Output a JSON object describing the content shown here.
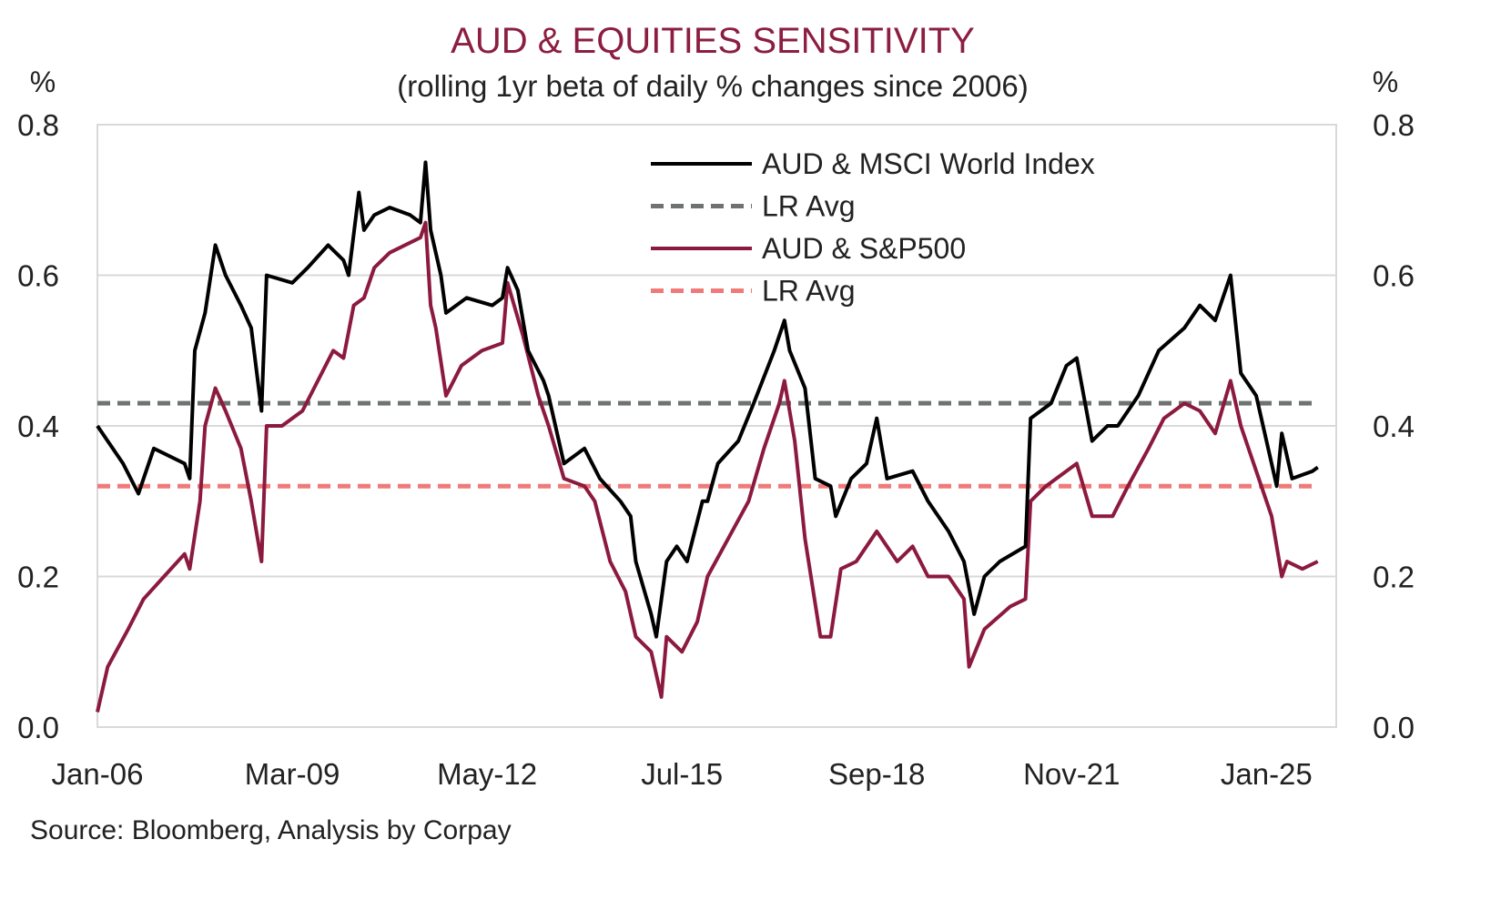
{
  "chart_data": {
    "type": "line",
    "title": "AUD & EQUITIES SENSITIVITY",
    "subtitle": "(rolling 1yr beta of daily % changes since 2006)",
    "ylabel_left": "%",
    "ylabel_right": "%",
    "ylim": [
      0,
      0.8
    ],
    "yticks": [
      "0.0",
      "0.2",
      "0.4",
      "0.6",
      "0.8"
    ],
    "xticks": [
      "Jan-06",
      "Mar-09",
      "May-12",
      "Jul-15",
      "Sep-18",
      "Nov-21",
      "Jan-25"
    ],
    "grid": true,
    "legend_position": "top-right",
    "source": "Source: Bloomberg, Analysis by Corpay",
    "colors": {
      "title": "#8b1e41",
      "msci": "#000000",
      "msci_avg": "#6e7270",
      "sp500": "#8c1a3e",
      "sp500_avg": "#f07a7a",
      "grid": "#d9d9d9"
    },
    "series": [
      {
        "name": "AUD & MSCI World Index",
        "style": "solid",
        "points": [
          [
            "2006-01",
            0.4
          ],
          [
            "2006-03",
            0.38
          ],
          [
            "2006-06",
            0.35
          ],
          [
            "2006-09",
            0.31
          ],
          [
            "2006-12",
            0.37
          ],
          [
            "2007-06",
            0.35
          ],
          [
            "2007-07",
            0.33
          ],
          [
            "2007-08",
            0.5
          ],
          [
            "2007-10",
            0.55
          ],
          [
            "2007-12",
            0.64
          ],
          [
            "2008-02",
            0.6
          ],
          [
            "2008-05",
            0.56
          ],
          [
            "2008-07",
            0.53
          ],
          [
            "2008-09",
            0.42
          ],
          [
            "2008-10",
            0.6
          ],
          [
            "2009-03",
            0.59
          ],
          [
            "2009-06",
            0.61
          ],
          [
            "2009-10",
            0.64
          ],
          [
            "2010-01",
            0.62
          ],
          [
            "2010-02",
            0.6
          ],
          [
            "2010-04",
            0.71
          ],
          [
            "2010-05",
            0.66
          ],
          [
            "2010-07",
            0.68
          ],
          [
            "2010-10",
            0.69
          ],
          [
            "2011-02",
            0.68
          ],
          [
            "2011-04",
            0.67
          ],
          [
            "2011-05",
            0.75
          ],
          [
            "2011-06",
            0.66
          ],
          [
            "2011-08",
            0.6
          ],
          [
            "2011-09",
            0.55
          ],
          [
            "2012-01",
            0.57
          ],
          [
            "2012-06",
            0.56
          ],
          [
            "2012-08",
            0.57
          ],
          [
            "2012-09",
            0.61
          ],
          [
            "2012-11",
            0.58
          ],
          [
            "2013-01",
            0.5
          ],
          [
            "2013-04",
            0.46
          ],
          [
            "2013-05",
            0.44
          ],
          [
            "2013-08",
            0.35
          ],
          [
            "2013-12",
            0.37
          ],
          [
            "2014-03",
            0.33
          ],
          [
            "2014-07",
            0.3
          ],
          [
            "2014-09",
            0.28
          ],
          [
            "2014-10",
            0.22
          ],
          [
            "2015-01",
            0.15
          ],
          [
            "2015-02",
            0.12
          ],
          [
            "2015-04",
            0.22
          ],
          [
            "2015-06",
            0.24
          ],
          [
            "2015-08",
            0.22
          ],
          [
            "2015-11",
            0.3
          ],
          [
            "2015-12",
            0.3
          ],
          [
            "2016-02",
            0.35
          ],
          [
            "2016-06",
            0.38
          ],
          [
            "2016-09",
            0.43
          ],
          [
            "2017-01",
            0.5
          ],
          [
            "2017-03",
            0.54
          ],
          [
            "2017-04",
            0.5
          ],
          [
            "2017-07",
            0.45
          ],
          [
            "2017-09",
            0.33
          ],
          [
            "2017-12",
            0.32
          ],
          [
            "2018-01",
            0.28
          ],
          [
            "2018-04",
            0.33
          ],
          [
            "2018-07",
            0.35
          ],
          [
            "2018-09",
            0.41
          ],
          [
            "2018-11",
            0.33
          ],
          [
            "2019-04",
            0.34
          ],
          [
            "2019-07",
            0.3
          ],
          [
            "2019-11",
            0.26
          ],
          [
            "2020-02",
            0.22
          ],
          [
            "2020-04",
            0.15
          ],
          [
            "2020-06",
            0.2
          ],
          [
            "2020-09",
            0.22
          ],
          [
            "2021-02",
            0.24
          ],
          [
            "2021-03",
            0.41
          ],
          [
            "2021-07",
            0.43
          ],
          [
            "2021-10",
            0.48
          ],
          [
            "2021-12",
            0.49
          ],
          [
            "2022-03",
            0.38
          ],
          [
            "2022-06",
            0.4
          ],
          [
            "2022-08",
            0.4
          ],
          [
            "2022-12",
            0.44
          ],
          [
            "2023-04",
            0.5
          ],
          [
            "2023-09",
            0.53
          ],
          [
            "2023-12",
            0.56
          ],
          [
            "2024-03",
            0.54
          ],
          [
            "2024-06",
            0.6
          ],
          [
            "2024-08",
            0.47
          ],
          [
            "2024-11",
            0.44
          ],
          [
            "2025-02",
            0.35
          ],
          [
            "2025-03",
            0.32
          ],
          [
            "2025-04",
            0.39
          ],
          [
            "2025-06",
            0.33
          ],
          [
            "2025-10",
            0.34
          ],
          [
            "2025-11",
            0.345
          ]
        ]
      },
      {
        "name": "LR Avg",
        "style": "dashed",
        "value": 0.43
      },
      {
        "name": "AUD & S&P500",
        "style": "solid",
        "points": [
          [
            "2006-01",
            0.02
          ],
          [
            "2006-03",
            0.08
          ],
          [
            "2006-07",
            0.13
          ],
          [
            "2006-10",
            0.17
          ],
          [
            "2007-02",
            0.2
          ],
          [
            "2007-06",
            0.23
          ],
          [
            "2007-07",
            0.21
          ],
          [
            "2007-09",
            0.3
          ],
          [
            "2007-10",
            0.4
          ],
          [
            "2007-12",
            0.45
          ],
          [
            "2008-02",
            0.42
          ],
          [
            "2008-05",
            0.37
          ],
          [
            "2008-07",
            0.3
          ],
          [
            "2008-09",
            0.22
          ],
          [
            "2008-10",
            0.4
          ],
          [
            "2009-01",
            0.4
          ],
          [
            "2009-05",
            0.42
          ],
          [
            "2009-08",
            0.46
          ],
          [
            "2009-11",
            0.5
          ],
          [
            "2010-01",
            0.49
          ],
          [
            "2010-03",
            0.56
          ],
          [
            "2010-05",
            0.57
          ],
          [
            "2010-07",
            0.61
          ],
          [
            "2010-10",
            0.63
          ],
          [
            "2011-04",
            0.65
          ],
          [
            "2011-05",
            0.67
          ],
          [
            "2011-06",
            0.56
          ],
          [
            "2011-07",
            0.53
          ],
          [
            "2011-09",
            0.44
          ],
          [
            "2011-12",
            0.48
          ],
          [
            "2012-04",
            0.5
          ],
          [
            "2012-08",
            0.51
          ],
          [
            "2012-09",
            0.59
          ],
          [
            "2012-12",
            0.52
          ],
          [
            "2013-03",
            0.44
          ],
          [
            "2013-05",
            0.4
          ],
          [
            "2013-08",
            0.33
          ],
          [
            "2013-12",
            0.32
          ],
          [
            "2014-02",
            0.3
          ],
          [
            "2014-05",
            0.22
          ],
          [
            "2014-08",
            0.18
          ],
          [
            "2014-10",
            0.12
          ],
          [
            "2015-01",
            0.1
          ],
          [
            "2015-03",
            0.04
          ],
          [
            "2015-04",
            0.12
          ],
          [
            "2015-07",
            0.1
          ],
          [
            "2015-10",
            0.14
          ],
          [
            "2015-12",
            0.2
          ],
          [
            "2016-04",
            0.25
          ],
          [
            "2016-08",
            0.3
          ],
          [
            "2016-11",
            0.37
          ],
          [
            "2017-02",
            0.43
          ],
          [
            "2017-03",
            0.46
          ],
          [
            "2017-05",
            0.38
          ],
          [
            "2017-07",
            0.25
          ],
          [
            "2017-10",
            0.12
          ],
          [
            "2017-12",
            0.12
          ],
          [
            "2018-02",
            0.21
          ],
          [
            "2018-05",
            0.22
          ],
          [
            "2018-09",
            0.26
          ],
          [
            "2019-01",
            0.22
          ],
          [
            "2019-04",
            0.24
          ],
          [
            "2019-07",
            0.2
          ],
          [
            "2019-11",
            0.2
          ],
          [
            "2020-02",
            0.17
          ],
          [
            "2020-03",
            0.08
          ],
          [
            "2020-06",
            0.13
          ],
          [
            "2020-11",
            0.16
          ],
          [
            "2021-02",
            0.17
          ],
          [
            "2021-03",
            0.3
          ],
          [
            "2021-06",
            0.32
          ],
          [
            "2021-12",
            0.35
          ],
          [
            "2022-03",
            0.28
          ],
          [
            "2022-07",
            0.28
          ],
          [
            "2022-10",
            0.32
          ],
          [
            "2023-02",
            0.37
          ],
          [
            "2023-05",
            0.41
          ],
          [
            "2023-09",
            0.43
          ],
          [
            "2023-12",
            0.42
          ],
          [
            "2024-03",
            0.39
          ],
          [
            "2024-06",
            0.46
          ],
          [
            "2024-08",
            0.4
          ],
          [
            "2024-11",
            0.34
          ],
          [
            "2025-02",
            0.28
          ],
          [
            "2025-04",
            0.2
          ],
          [
            "2025-05",
            0.22
          ],
          [
            "2025-08",
            0.21
          ],
          [
            "2025-11",
            0.22
          ]
        ]
      },
      {
        "name": "LR Avg",
        "style": "dashed",
        "value": 0.32
      }
    ]
  }
}
